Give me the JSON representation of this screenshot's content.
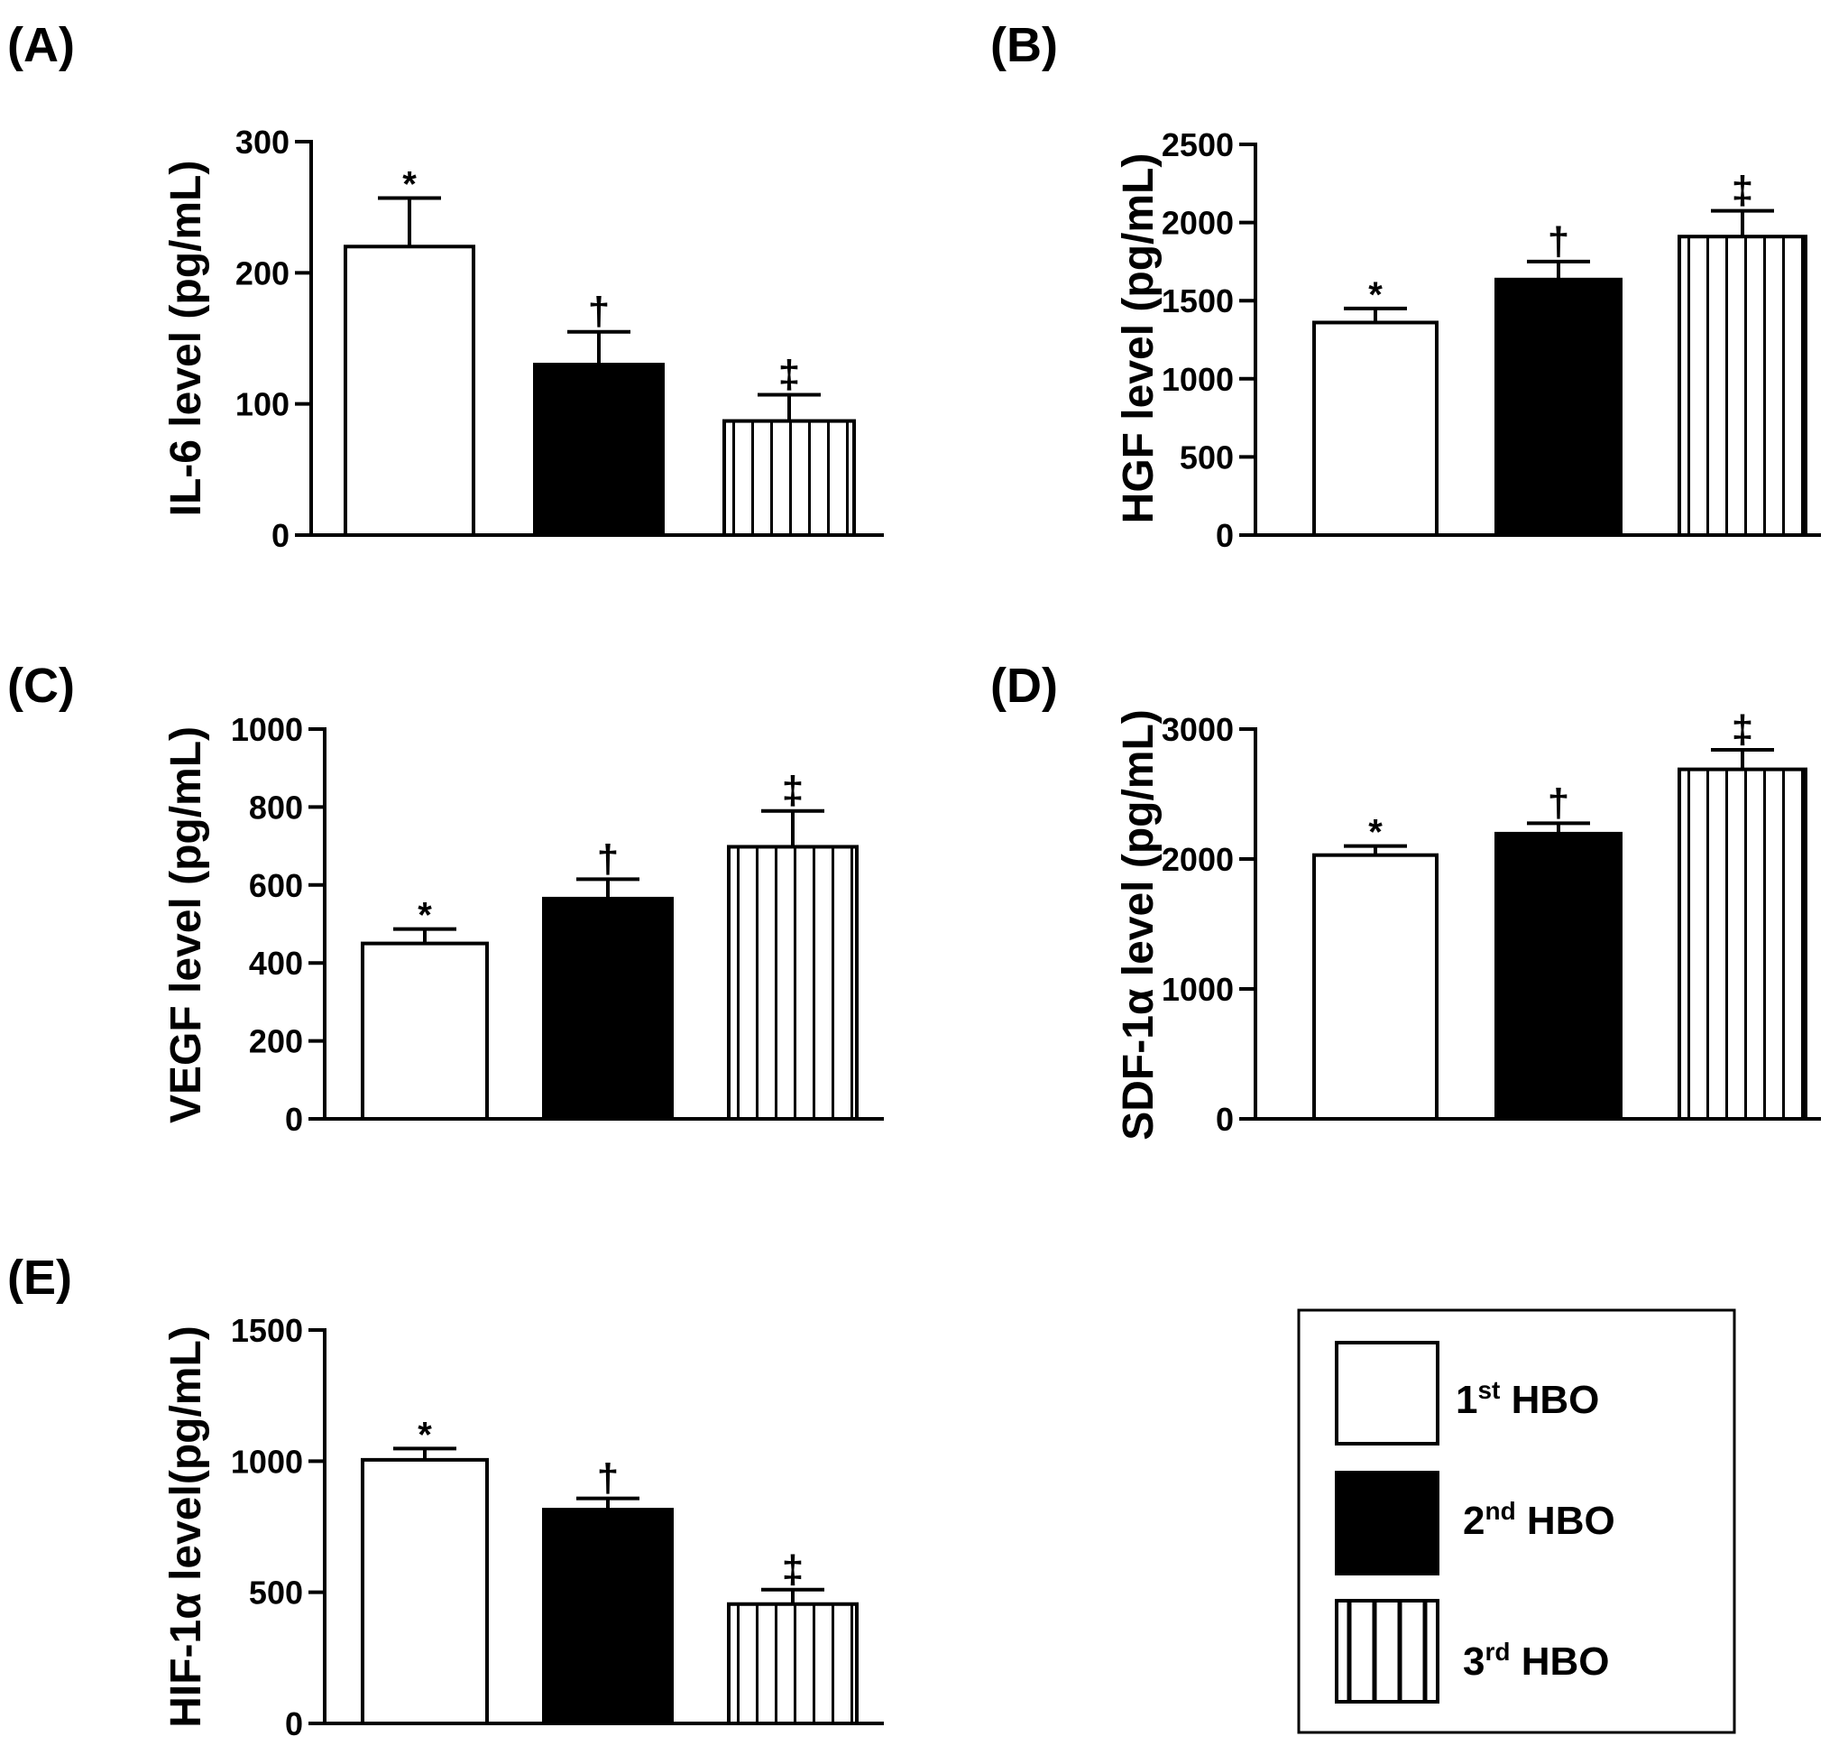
{
  "colors": {
    "ink": "#000000",
    "paper": "#ffffff"
  },
  "legend": {
    "items": [
      {
        "num": "1",
        "sup": "st",
        "text": " HBO",
        "pattern": "white"
      },
      {
        "num": "2",
        "sup": "nd",
        "text": " HBO",
        "pattern": "black"
      },
      {
        "num": "3",
        "sup": "rd",
        "text": " HBO",
        "pattern": "stripes"
      }
    ]
  },
  "chart_data": [
    {
      "type": "bar",
      "panel_label": "(A)",
      "ylabel": "IL-6 level (pg/mL)",
      "categories": [
        "1st HBO",
        "2nd HBO",
        "3rd HBO"
      ],
      "values": [
        220,
        130,
        87
      ],
      "errors": [
        37,
        25,
        20
      ],
      "significance": [
        "*",
        "†",
        "‡"
      ],
      "ylim": [
        0,
        300
      ],
      "yticks": [
        0,
        100,
        200,
        300
      ]
    },
    {
      "type": "bar",
      "panel_label": "(B)",
      "ylabel": "HGF level (pg/mL)",
      "categories": [
        "1st HBO",
        "2nd HBO",
        "3rd HBO"
      ],
      "values": [
        1360,
        1635,
        1910
      ],
      "errors": [
        90,
        115,
        165
      ],
      "significance": [
        "*",
        "†",
        "‡"
      ],
      "ylim": [
        0,
        2500
      ],
      "yticks": [
        0,
        500,
        1000,
        1500,
        2000,
        2500
      ]
    },
    {
      "type": "bar",
      "panel_label": "(C)",
      "ylabel": "VEGF level (pg/mL)",
      "categories": [
        "1st HBO",
        "2nd HBO",
        "3rd HBO"
      ],
      "values": [
        450,
        565,
        698
      ],
      "errors": [
        37,
        50,
        92
      ],
      "significance": [
        "*",
        "†",
        "‡"
      ],
      "ylim": [
        0,
        1000
      ],
      "yticks": [
        0,
        200,
        400,
        600,
        800,
        1000
      ]
    },
    {
      "type": "bar",
      "panel_label": "(D)",
      "ylabel": "SDF-1α level (pg/mL)",
      "categories": [
        "1st HBO",
        "2nd HBO",
        "3rd HBO"
      ],
      "values": [
        2030,
        2195,
        2690
      ],
      "errors": [
        70,
        80,
        150
      ],
      "significance": [
        "*",
        "†",
        "‡"
      ],
      "ylim": [
        0,
        3000
      ],
      "yticks": [
        0,
        1000,
        2000,
        3000
      ]
    },
    {
      "type": "bar",
      "panel_label": "(E)",
      "ylabel": "HIF-1α level(pg/mL)",
      "categories": [
        "1st HBO",
        "2nd HBO",
        "3rd HBO"
      ],
      "values": [
        1005,
        815,
        455
      ],
      "errors": [
        43,
        43,
        55
      ],
      "significance": [
        "*",
        "†",
        "‡"
      ],
      "ylim": [
        0,
        1500
      ],
      "yticks": [
        0,
        500,
        1000,
        1500
      ]
    }
  ]
}
